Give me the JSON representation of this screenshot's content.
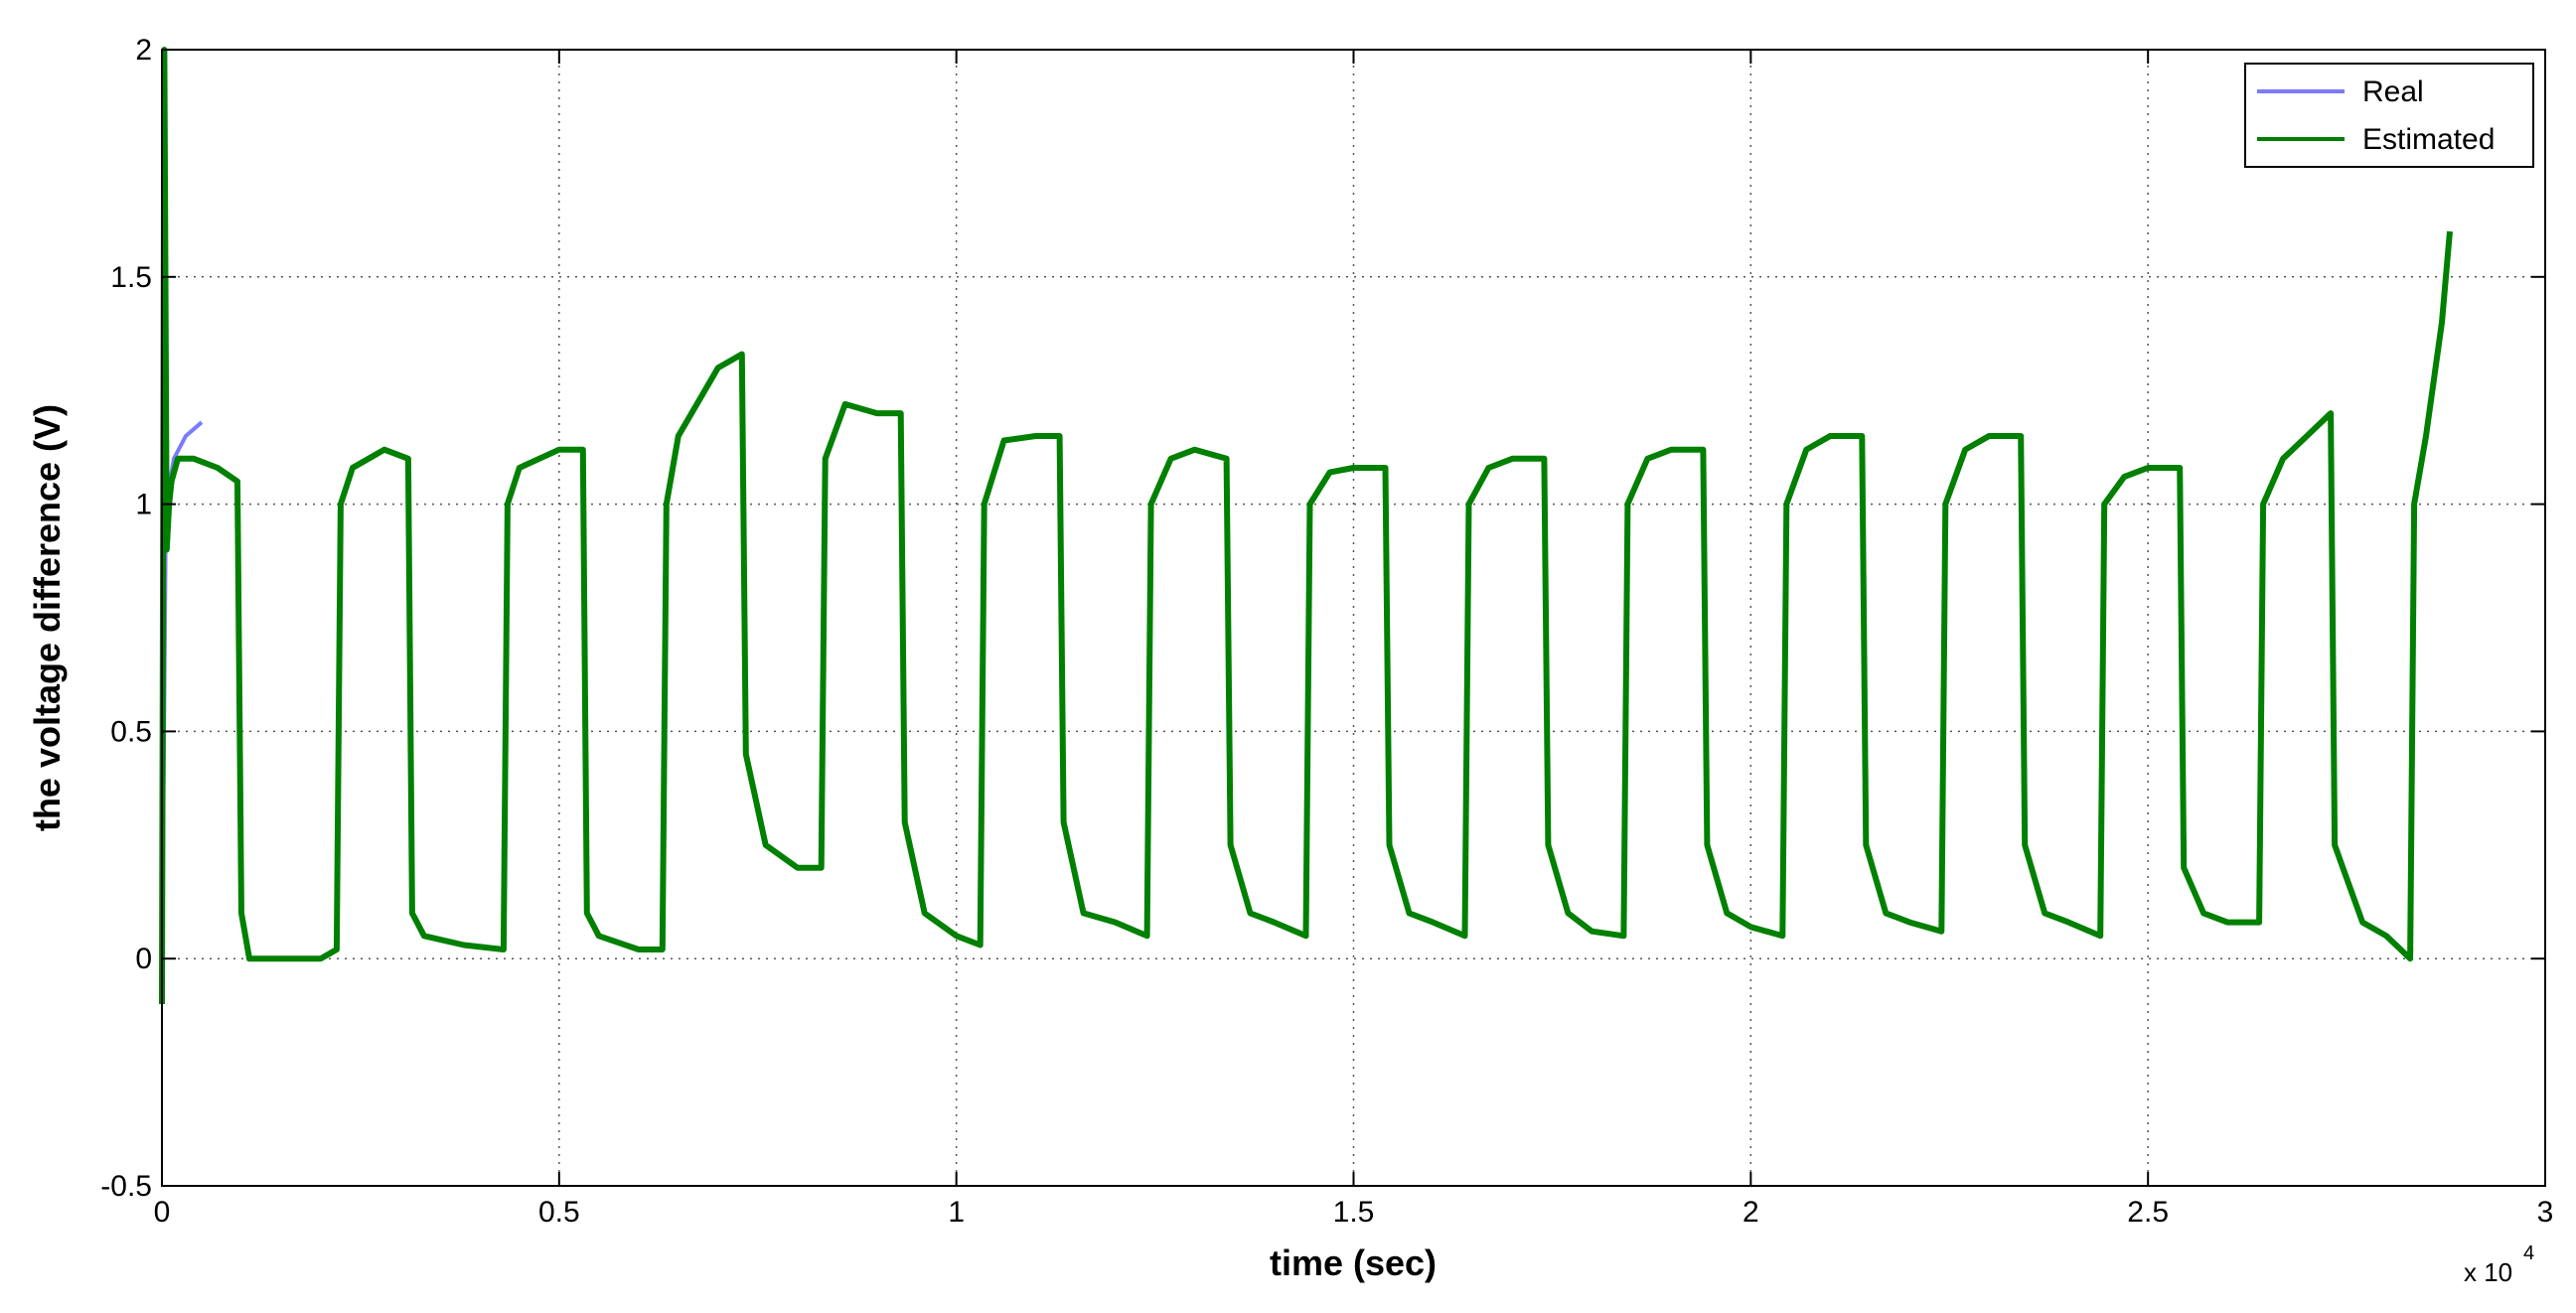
{
  "chart_data": {
    "type": "line",
    "title": "",
    "xlabel": "time (sec)",
    "ylabel": "the voltage difference (V)",
    "x_multiplier_label": "x 10",
    "x_multiplier_exponent": "4",
    "xlim": [
      0,
      30000
    ],
    "ylim": [
      -0.5,
      2
    ],
    "x_ticks": [
      0,
      5000,
      10000,
      15000,
      20000,
      25000,
      30000
    ],
    "x_tick_labels": [
      "0",
      "0.5",
      "1",
      "1.5",
      "2",
      "2.5",
      "3"
    ],
    "y_ticks": [
      -0.5,
      0,
      0.5,
      1,
      1.5,
      2
    ],
    "y_tick_labels": [
      "-0.5",
      "0",
      "0.5",
      "1",
      "1.5",
      "2"
    ],
    "grid": true,
    "legend_position": "top-right",
    "series": [
      {
        "name": "Real",
        "color": "#7b7bff",
        "x": [
          0,
          50,
          100,
          150,
          300,
          500
        ],
        "y": [
          -0.05,
          1.0,
          1.05,
          1.1,
          1.15,
          1.18
        ]
      },
      {
        "name": "Estimated",
        "color": "#008000",
        "x": [
          0,
          30,
          60,
          90,
          120,
          200,
          400,
          700,
          950,
          1000,
          1100,
          1500,
          2000,
          2200,
          2250,
          2400,
          2800,
          3100,
          3150,
          3300,
          3800,
          4300,
          4350,
          4500,
          5000,
          5300,
          5350,
          5500,
          6000,
          6300,
          6350,
          6500,
          7000,
          7300,
          7350,
          7600,
          8000,
          8300,
          8350,
          8600,
          9000,
          9300,
          9350,
          9600,
          10000,
          10300,
          10350,
          10600,
          11000,
          11300,
          11350,
          11600,
          12000,
          12400,
          12450,
          12700,
          13000,
          13400,
          13450,
          13700,
          14000,
          14400,
          14450,
          14700,
          15000,
          15400,
          15450,
          15700,
          16000,
          16400,
          16450,
          16700,
          17000,
          17400,
          17450,
          17700,
          18000,
          18400,
          18450,
          18700,
          19000,
          19400,
          19450,
          19700,
          20000,
          20400,
          20450,
          20700,
          21000,
          21400,
          21450,
          21700,
          22000,
          22400,
          22450,
          22700,
          23000,
          23400,
          23450,
          23700,
          24000,
          24400,
          24450,
          24700,
          25000,
          25400,
          25450,
          25700,
          26000,
          26400,
          26450,
          26700,
          27000,
          27300,
          27350,
          27700,
          28000,
          28300,
          28350,
          28500,
          28700,
          28800
        ],
        "y": [
          -0.1,
          2.0,
          0.9,
          1.0,
          1.05,
          1.1,
          1.1,
          1.08,
          1.05,
          0.1,
          0.0,
          0.0,
          0.0,
          0.02,
          1.0,
          1.08,
          1.12,
          1.1,
          0.1,
          0.05,
          0.03,
          0.02,
          1.0,
          1.08,
          1.12,
          1.12,
          0.1,
          0.05,
          0.02,
          0.02,
          1.0,
          1.15,
          1.3,
          1.33,
          0.45,
          0.25,
          0.2,
          0.2,
          1.1,
          1.22,
          1.2,
          1.2,
          0.3,
          0.1,
          0.05,
          0.03,
          1.0,
          1.14,
          1.15,
          1.15,
          0.3,
          0.1,
          0.08,
          0.05,
          1.0,
          1.1,
          1.12,
          1.1,
          0.25,
          0.1,
          0.08,
          0.05,
          1.0,
          1.07,
          1.08,
          1.08,
          0.25,
          0.1,
          0.08,
          0.05,
          1.0,
          1.08,
          1.1,
          1.1,
          0.25,
          0.1,
          0.06,
          0.05,
          1.0,
          1.1,
          1.12,
          1.12,
          0.25,
          0.1,
          0.07,
          0.05,
          1.0,
          1.12,
          1.15,
          1.15,
          0.25,
          0.1,
          0.08,
          0.06,
          1.0,
          1.12,
          1.15,
          1.15,
          0.25,
          0.1,
          0.08,
          0.05,
          1.0,
          1.06,
          1.08,
          1.08,
          0.2,
          0.1,
          0.08,
          0.08,
          1.0,
          1.1,
          1.15,
          1.2,
          0.25,
          0.08,
          0.05,
          0.0,
          1.0,
          1.15,
          1.4,
          1.6
        ]
      }
    ]
  }
}
